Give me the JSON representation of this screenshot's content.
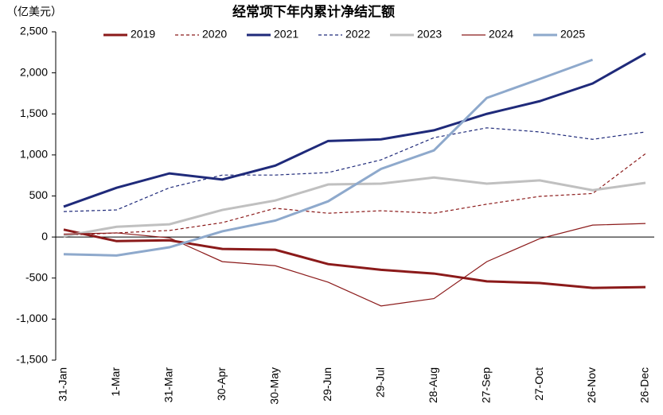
{
  "chart_data": {
    "type": "line",
    "title": "经常项下年内累计净结汇额",
    "y_label": "（亿美元）",
    "categories": [
      "31-Jan",
      "1-Mar",
      "31-Mar",
      "30-Apr",
      "30-May",
      "29-Jun",
      "29-Jul",
      "28-Aug",
      "27-Sep",
      "27-Oct",
      "26-Nov",
      "26-Dec"
    ],
    "series": [
      {
        "name": "2019",
        "color": "#8b1a1a",
        "line_width": 3,
        "dashed": false,
        "values": [
          90,
          -50,
          -40,
          -145,
          -155,
          -330,
          -400,
          -445,
          -540,
          -560,
          -620,
          -610
        ]
      },
      {
        "name": "2020",
        "color": "#8b1a1a",
        "line_width": 1.2,
        "dashed": true,
        "values": [
          20,
          50,
          80,
          175,
          350,
          290,
          320,
          290,
          400,
          495,
          530,
          1015
        ]
      },
      {
        "name": "2021",
        "color": "#1f2a7a",
        "line_width": 3,
        "dashed": false,
        "values": [
          370,
          600,
          775,
          700,
          870,
          1170,
          1190,
          1300,
          1500,
          1655,
          1870,
          2235
        ]
      },
      {
        "name": "2022",
        "color": "#1f2a7a",
        "line_width": 1.2,
        "dashed": true,
        "values": [
          310,
          330,
          600,
          755,
          755,
          785,
          940,
          1210,
          1330,
          1280,
          1190,
          1280
        ]
      },
      {
        "name": "2023",
        "color": "#c0c0c0",
        "line_width": 3,
        "dashed": false,
        "values": [
          10,
          125,
          155,
          330,
          445,
          640,
          650,
          725,
          650,
          690,
          570,
          660
        ]
      },
      {
        "name": "2024",
        "color": "#8b1a1a",
        "line_width": 1.2,
        "dashed": false,
        "values": [
          35,
          50,
          -10,
          -300,
          -350,
          -550,
          -840,
          -750,
          -300,
          -20,
          145,
          165
        ]
      },
      {
        "name": "2025",
        "color": "#8ea9cc",
        "line_width": 3,
        "dashed": false,
        "values": [
          -210,
          -225,
          -125,
          70,
          200,
          435,
          830,
          1055,
          1695,
          1925,
          2160,
          null
        ]
      }
    ],
    "ylim": [
      -1500,
      2500
    ],
    "yticks": [
      {
        "value": -1500,
        "label": "-1,500"
      },
      {
        "value": -1000,
        "label": "-1,000"
      },
      -500,
      0,
      500,
      {
        "value": 1000,
        "label": "1,000"
      },
      {
        "value": 1500,
        "label": "1,500"
      },
      {
        "value": 2000,
        "label": "2,000"
      },
      {
        "value": 2500,
        "label": "2,500"
      }
    ]
  }
}
